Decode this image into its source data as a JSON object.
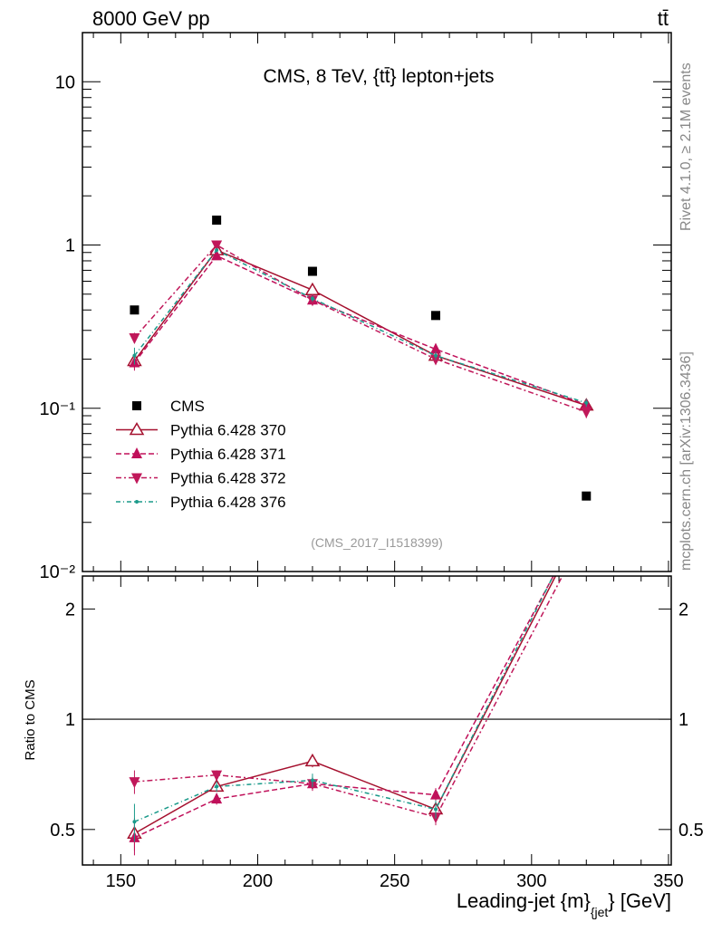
{
  "header": {
    "left": "8000 GeV pp",
    "right": "tt̄"
  },
  "side_labels": {
    "rivet": "Rivet 4.1.0, ≥ 2.1M events",
    "mcplots": "mcplots.cern.ch [arXiv:1306.3436]"
  },
  "chart_data": {
    "type": "scatter",
    "title": "CMS, 8 TeV, {tt̄} lepton+jets",
    "watermark": "(CMS_2017_I1518399)",
    "xlabel": "Leading-jet {m}",
    "xlabel_sub": "{jet",
    "xlabel_unit": "} [GeV]",
    "ratio_ylabel": "Ratio to CMS",
    "xlim": [
      136,
      351
    ],
    "ylim": [
      0.01,
      20
    ],
    "yscale": "log",
    "ratio_ylim": [
      0.4,
      2.46
    ],
    "ratio_yscale": "log",
    "x_ticks": [
      150,
      200,
      250,
      300,
      350
    ],
    "x_tick_labels": [
      "150",
      "200",
      "250",
      "300",
      "350"
    ],
    "y_ticks": [
      10,
      1,
      0.1,
      0.01
    ],
    "y_tick_labels": [
      "10",
      "1",
      "10⁻¹",
      "10⁻²"
    ],
    "ratio_ticks": [
      2,
      1,
      0.5
    ],
    "ratio_tick_labels": [
      "2",
      "1",
      "0.5"
    ],
    "legend_position": "lower-left",
    "x": [
      155,
      185,
      220,
      265,
      320
    ],
    "series": [
      {
        "name": "CMS",
        "marker": "square",
        "color": "#000000",
        "dash": "",
        "values": [
          0.4,
          1.42,
          0.69,
          0.37,
          0.029
        ],
        "err": [
          0,
          0,
          0,
          0,
          0
        ]
      },
      {
        "name": "Pythia 6.428 370",
        "marker": "triangle-up-open",
        "color": "#a5102e",
        "dash": "",
        "values": [
          0.195,
          0.93,
          0.53,
          0.21,
          0.104
        ],
        "err": [
          0.02,
          0.03,
          0.02,
          0.01,
          0.006
        ]
      },
      {
        "name": "Pythia 6.428 371",
        "marker": "triangle-up",
        "color": "#c0105a",
        "dash": "6,3",
        "values": [
          0.19,
          0.86,
          0.46,
          0.23,
          0.105
        ],
        "err": [
          0.02,
          0.03,
          0.02,
          0.01,
          0.006
        ]
      },
      {
        "name": "Pythia 6.428 372",
        "marker": "triangle-down",
        "color": "#c0185a",
        "dash": "6,3,2,3",
        "values": [
          0.27,
          1.0,
          0.46,
          0.2,
          0.095
        ],
        "err": [
          0.02,
          0.03,
          0.02,
          0.01,
          0.008
        ]
      },
      {
        "name": "Pythia 6.428 376",
        "marker": "dot",
        "color": "#1a9a8a",
        "dash": "5,3,1,3",
        "values": [
          0.21,
          0.93,
          0.47,
          0.21,
          0.108
        ],
        "err": [
          0.025,
          0.03,
          0.02,
          0.012,
          0.006
        ]
      }
    ]
  }
}
